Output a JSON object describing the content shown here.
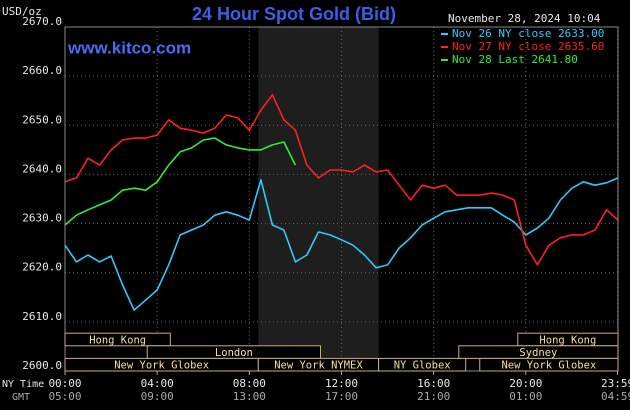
{
  "chart_data": {
    "type": "line",
    "title": "24 Hour Spot Gold (Bid)",
    "watermark": "www.kitco.com",
    "timestamp": "November 28, 2024 10:04",
    "y_label": "USD/oz",
    "x_label": "NY Time",
    "x2_label": "GMT",
    "xlim": [
      0,
      24
    ],
    "ylim": [
      2600,
      2670
    ],
    "xticks": [
      {
        "value": 0,
        "label": "00:00"
      },
      {
        "value": 4,
        "label": "04:00"
      },
      {
        "value": 8,
        "label": "08:00"
      },
      {
        "value": 12,
        "label": "12:00"
      },
      {
        "value": 16,
        "label": "16:00"
      },
      {
        "value": 20,
        "label": "20:00"
      },
      {
        "value": 23.983,
        "label": "23:59"
      }
    ],
    "x2ticks": [
      "05:00",
      "09:00",
      "13:00",
      "17:00",
      "21:00",
      "01:00",
      "04:59"
    ],
    "yticks": [
      {
        "value": 2600,
        "label": "2600.0"
      },
      {
        "value": 2610,
        "label": "2610.0"
      },
      {
        "value": 2620,
        "label": "2620.0"
      },
      {
        "value": 2630,
        "label": "2630.0"
      },
      {
        "value": 2640,
        "label": "2640.0"
      },
      {
        "value": 2650,
        "label": "2650.0"
      },
      {
        "value": 2660,
        "label": "2660.0"
      },
      {
        "value": 2670,
        "label": "2670.0"
      }
    ],
    "grid": true,
    "x": [
      0,
      0.5,
      1,
      1.5,
      2,
      2.5,
      3,
      3.5,
      4,
      4.5,
      5,
      5.5,
      6,
      6.5,
      7,
      7.5,
      8,
      8.5,
      9,
      9.5,
      10,
      10.5,
      11,
      11.5,
      12,
      12.5,
      13,
      13.5,
      14,
      14.5,
      15,
      15.5,
      16,
      16.5,
      17,
      17.5,
      18,
      18.5,
      19,
      19.5,
      20,
      20.5,
      21,
      21.5,
      22,
      22.5,
      23,
      23.5,
      24
    ],
    "series": [
      {
        "name": "Nov 26 NY close 2633.00",
        "color": "#33c8ff",
        "values": [
          2625.6,
          2622.2,
          2623.6,
          2622.2,
          2623.4,
          2617.5,
          2612.4,
          2614.4,
          2616.5,
          2621.6,
          2627.7,
          2628.7,
          2629.7,
          2631.7,
          2632.4,
          2631.7,
          2630.7,
          2638.9,
          2629.7,
          2628.7,
          2622.2,
          2623.6,
          2628.3,
          2627.7,
          2626.7,
          2625.6,
          2623.6,
          2621.0,
          2621.6,
          2625.0,
          2627.1,
          2629.7,
          2631.1,
          2632.4,
          2632.8,
          2633.2,
          2633.2,
          2633.2,
          2631.7,
          2630.3,
          2627.7,
          2629.1,
          2631.1,
          2634.8,
          2637.2,
          2638.5,
          2637.8,
          2638.3,
          2639.3
        ]
      },
      {
        "name": "Nov 27 NY close 2635.60",
        "color": "#ff2020",
        "values": [
          2638.5,
          2639.3,
          2643.3,
          2641.9,
          2645.0,
          2647.0,
          2647.4,
          2647.4,
          2648.0,
          2651.1,
          2649.4,
          2649.0,
          2648.4,
          2649.4,
          2652.1,
          2651.5,
          2649.0,
          2653.1,
          2656.2,
          2651.1,
          2649.0,
          2641.9,
          2639.3,
          2640.9,
          2640.9,
          2640.5,
          2641.9,
          2640.5,
          2640.9,
          2637.8,
          2634.8,
          2637.8,
          2637.2,
          2637.8,
          2635.8,
          2635.8,
          2635.8,
          2636.2,
          2635.8,
          2634.8,
          2625.6,
          2621.6,
          2625.6,
          2627.1,
          2627.7,
          2627.7,
          2628.7,
          2632.8,
          2630.7
        ]
      },
      {
        "name": "Nov 28 Last 2641.80",
        "color": "#33ee33",
        "values": [
          2629.7,
          2631.7,
          2632.8,
          2633.8,
          2634.8,
          2636.8,
          2637.2,
          2636.8,
          2638.5,
          2641.9,
          2644.6,
          2645.4,
          2647.0,
          2647.4,
          2646.0,
          2645.4,
          2645.0,
          2645.0,
          2646.0,
          2646.6,
          2641.9,
          null,
          null,
          null,
          null,
          null,
          null,
          null,
          null,
          null,
          null,
          null,
          null,
          null,
          null,
          null,
          null,
          null,
          null,
          null,
          null,
          null,
          null,
          null,
          null,
          null,
          null,
          null,
          null
        ]
      }
    ],
    "session_rows": [
      [
        {
          "label": "Hong Kong",
          "start": 0,
          "end": 4.57
        },
        {
          "label": "Hong Kong",
          "start": 19.65,
          "end": 24
        }
      ],
      [
        {
          "label": "London",
          "start": 3.57,
          "end": 11.09
        },
        {
          "label": "Sydney",
          "start": 17.09,
          "end": 24
        }
      ],
      [
        {
          "label": "New York Globex",
          "start": 0,
          "end": 8.39
        },
        {
          "label": "New York NYMEX",
          "start": 8.39,
          "end": 13.61,
          "shaded": true
        },
        {
          "label": "NY Globex",
          "start": 13.61,
          "end": 17.39
        },
        {
          "label": "New York Globex",
          "start": 18,
          "end": 24
        }
      ]
    ]
  }
}
